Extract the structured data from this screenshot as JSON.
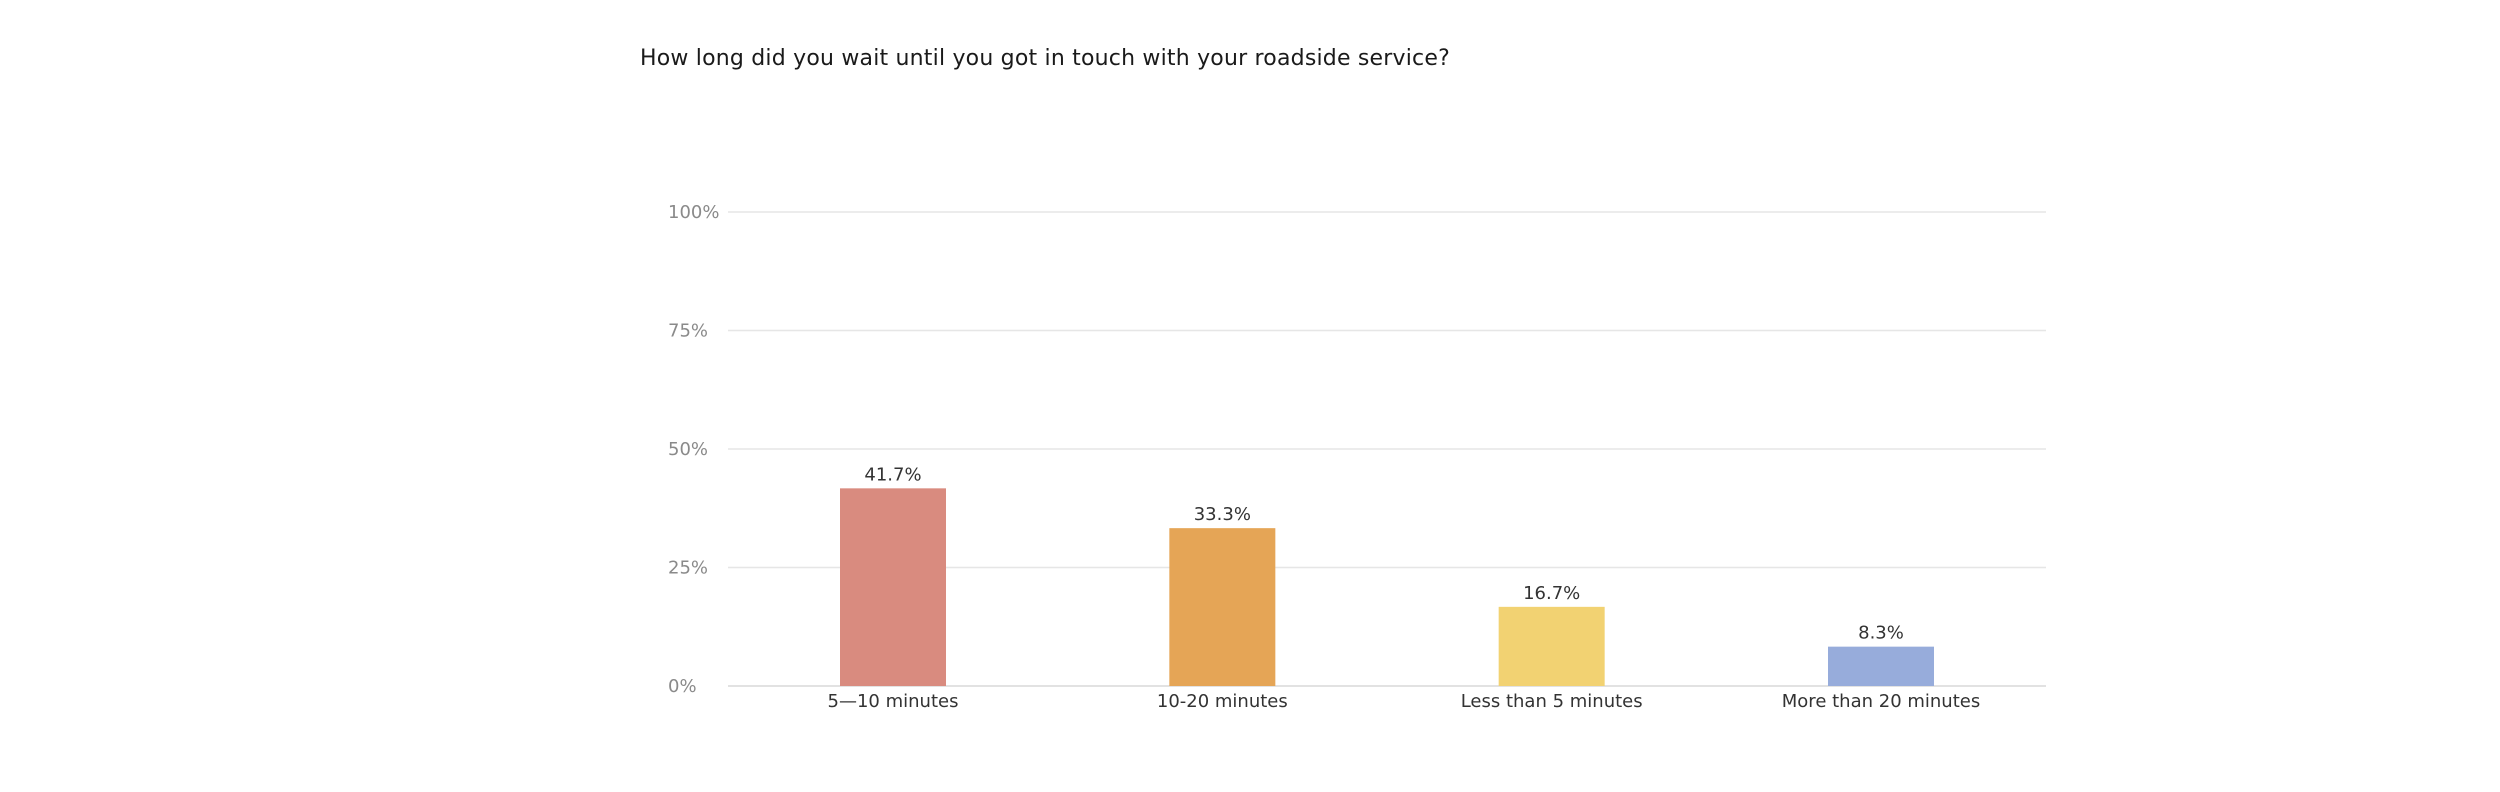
{
  "chart_data": {
    "type": "bar",
    "title": "How long did you wait until you got in touch with your roadside service?",
    "xlabel": "",
    "ylabel": "",
    "ylim": [
      0,
      100
    ],
    "y_ticks": [
      0,
      25,
      50,
      75,
      100
    ],
    "y_tick_labels": [
      "0%",
      "25%",
      "50%",
      "75%",
      "100%"
    ],
    "grid": true,
    "categories": [
      "5—10 minutes",
      "10-20 minutes",
      "Less than 5 minutes",
      "More than 20 minutes"
    ],
    "values": [
      41.7,
      33.3,
      16.7,
      8.3
    ],
    "value_labels": [
      "41.7%",
      "33.3%",
      "16.7%",
      "8.3%"
    ],
    "colors": [
      "#d98b7f",
      "#e5a556",
      "#f2d272",
      "#97acdb"
    ]
  },
  "style": {
    "grid_color": "#e6e6e6",
    "axis_color": "#d9d9d9"
  }
}
